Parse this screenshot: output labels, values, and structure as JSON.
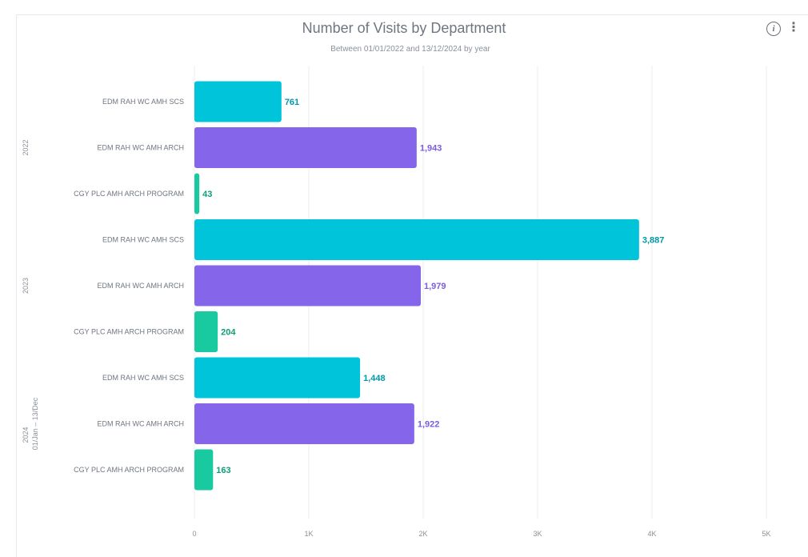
{
  "header": {
    "info_icon": "info-icon",
    "more_icon": "more-vertical-icon"
  },
  "chart_data": {
    "type": "bar",
    "orientation": "horizontal",
    "title": "Number of Visits by Department",
    "subtitle": "Between 01/01/2022 and 13/12/2024 by year",
    "xlim": [
      0,
      5000
    ],
    "x_ticks": [
      {
        "value": 0,
        "label": "0"
      },
      {
        "value": 1000,
        "label": "1K"
      },
      {
        "value": 2000,
        "label": "2K"
      },
      {
        "value": 3000,
        "label": "3K"
      },
      {
        "value": 4000,
        "label": "4K"
      },
      {
        "value": 5000,
        "label": "5K"
      }
    ],
    "grid": true,
    "groups": [
      {
        "label": "2022",
        "sublabel": "",
        "bars": [
          {
            "category": "EDM RAH WC AMH SCS",
            "value": 761,
            "label": "761",
            "color": "#00c4d9",
            "label_color": "#0097a8"
          },
          {
            "category": "EDM RAH WC AMH ARCH",
            "value": 1943,
            "label": "1,943",
            "color": "#8566ea",
            "label_color": "#7a5ce0"
          },
          {
            "category": "CGY PLC AMH ARCH PROGRAM",
            "value": 43,
            "label": "43",
            "color": "#19c99f",
            "label_color": "#0f9c78"
          }
        ]
      },
      {
        "label": "2023",
        "sublabel": "",
        "bars": [
          {
            "category": "EDM RAH WC AMH SCS",
            "value": 3887,
            "label": "3,887",
            "color": "#00c4d9",
            "label_color": "#0097a8"
          },
          {
            "category": "EDM RAH WC AMH ARCH",
            "value": 1979,
            "label": "1,979",
            "color": "#8566ea",
            "label_color": "#7a5ce0"
          },
          {
            "category": "CGY PLC AMH ARCH PROGRAM",
            "value": 204,
            "label": "204",
            "color": "#19c99f",
            "label_color": "#0f9c78"
          }
        ]
      },
      {
        "label": "2024",
        "sublabel": "01/Jan – 13/Dec",
        "bars": [
          {
            "category": "EDM RAH WC AMH SCS",
            "value": 1448,
            "label": "1,448",
            "color": "#00c4d9",
            "label_color": "#0097a8"
          },
          {
            "category": "EDM RAH WC AMH ARCH",
            "value": 1922,
            "label": "1,922",
            "color": "#8566ea",
            "label_color": "#7a5ce0"
          },
          {
            "category": "CGY PLC AMH ARCH PROGRAM",
            "value": 163,
            "label": "163",
            "color": "#19c99f",
            "label_color": "#0f9c78"
          }
        ]
      }
    ]
  }
}
